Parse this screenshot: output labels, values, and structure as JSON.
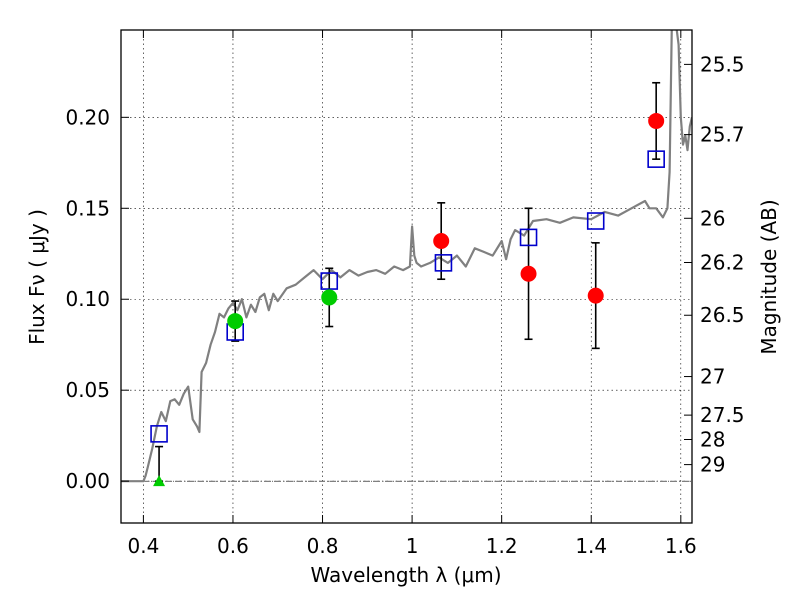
{
  "chart_data": {
    "type": "scatter",
    "xlabel": "Wavelength  λ (μm)",
    "ylabel": "Flux  Fν  ( μJy )",
    "y2label": "Magnitude (AB)",
    "xlim": [
      0.35,
      1.625
    ],
    "ylim": [
      -0.023,
      0.248
    ],
    "xticks": [
      0.4,
      0.6,
      0.8,
      1.0,
      1.2,
      1.4,
      1.6
    ],
    "xtick_labels": [
      "0.4",
      "0.6",
      "0.8",
      "1",
      "1.2",
      "1.4",
      "1.6"
    ],
    "yticks": [
      0.0,
      0.05,
      0.1,
      0.15,
      0.2
    ],
    "ytick_labels": [
      "0.00",
      "0.05",
      "0.10",
      "0.15",
      "0.20"
    ],
    "y2ticks": [
      {
        "label": "25.5",
        "flux": 0.2291
      },
      {
        "label": "25.7",
        "flux": 0.1905
      },
      {
        "label": "26",
        "flux": 0.1445
      },
      {
        "label": "26.2",
        "flux": 0.1202
      },
      {
        "label": "26.5",
        "flux": 0.0912
      },
      {
        "label": "27",
        "flux": 0.0575
      },
      {
        "label": "27.5",
        "flux": 0.0363
      },
      {
        "label": "28",
        "flux": 0.0229
      },
      {
        "label": "29",
        "flux": 0.0091
      }
    ],
    "grid": true,
    "colors": {
      "template": "#808080",
      "model": "#0000cc",
      "detection": "#ff0000",
      "optical": "#00cc00",
      "upper_limit": "#00cc00",
      "errorbar": "#000000"
    },
    "series": [
      {
        "kind": "line",
        "x": [
          0.35,
          0.4,
          0.405,
          0.41,
          0.42,
          0.43,
          0.44,
          0.45,
          0.46,
          0.47,
          0.48,
          0.49,
          0.5,
          0.51,
          0.52,
          0.525,
          0.53,
          0.54,
          0.55,
          0.56,
          0.57,
          0.58,
          0.59,
          0.6,
          0.61,
          0.62,
          0.63,
          0.64,
          0.65,
          0.66,
          0.67,
          0.68,
          0.69,
          0.7,
          0.72,
          0.74,
          0.76,
          0.78,
          0.8,
          0.82,
          0.84,
          0.86,
          0.88,
          0.9,
          0.92,
          0.94,
          0.96,
          0.98,
          0.995,
          1.0,
          1.005,
          1.01,
          1.02,
          1.04,
          1.06,
          1.08,
          1.1,
          1.12,
          1.14,
          1.16,
          1.18,
          1.2,
          1.21,
          1.22,
          1.23,
          1.25,
          1.27,
          1.3,
          1.33,
          1.36,
          1.4,
          1.43,
          1.46,
          1.49,
          1.52,
          1.53,
          1.545,
          1.56,
          1.57,
          1.575,
          1.58,
          1.585,
          1.59,
          1.595,
          1.6,
          1.605,
          1.61,
          1.615,
          1.62,
          1.625
        ],
        "y": [
          0.0,
          0.0,
          0.003,
          0.008,
          0.018,
          0.03,
          0.038,
          0.033,
          0.044,
          0.045,
          0.042,
          0.048,
          0.052,
          0.034,
          0.03,
          0.027,
          0.06,
          0.065,
          0.075,
          0.082,
          0.092,
          0.09,
          0.095,
          0.098,
          0.094,
          0.1,
          0.09,
          0.097,
          0.093,
          0.101,
          0.103,
          0.094,
          0.103,
          0.099,
          0.106,
          0.108,
          0.112,
          0.116,
          0.111,
          0.116,
          0.112,
          0.116,
          0.113,
          0.115,
          0.116,
          0.114,
          0.118,
          0.116,
          0.118,
          0.14,
          0.124,
          0.12,
          0.118,
          0.12,
          0.123,
          0.12,
          0.124,
          0.118,
          0.128,
          0.126,
          0.124,
          0.132,
          0.122,
          0.133,
          0.138,
          0.135,
          0.143,
          0.144,
          0.142,
          0.145,
          0.144,
          0.148,
          0.146,
          0.15,
          0.154,
          0.15,
          0.15,
          0.145,
          0.15,
          0.17,
          0.25,
          0.26,
          0.25,
          0.24,
          0.2,
          0.185,
          0.19,
          0.182,
          0.195,
          0.2
        ]
      },
      {
        "kind": "model_squares",
        "x": [
          0.435,
          0.605,
          0.815,
          1.07,
          1.26,
          1.41,
          1.545
        ],
        "y": [
          0.026,
          0.082,
          0.11,
          0.12,
          0.134,
          0.143,
          0.177
        ]
      },
      {
        "kind": "red_points",
        "x": [
          1.065,
          1.26,
          1.41,
          1.545
        ],
        "y": [
          0.132,
          0.114,
          0.102,
          0.198
        ],
        "err": [
          0.021,
          0.036,
          0.029,
          0.021
        ]
      },
      {
        "kind": "green_points",
        "x": [
          0.605,
          0.815
        ],
        "y": [
          0.088,
          0.101
        ],
        "err": [
          0.011,
          0.016
        ]
      },
      {
        "kind": "upper_limit",
        "x": [
          0.435
        ],
        "y": [
          0.0
        ],
        "err_top": 0.019
      }
    ]
  }
}
